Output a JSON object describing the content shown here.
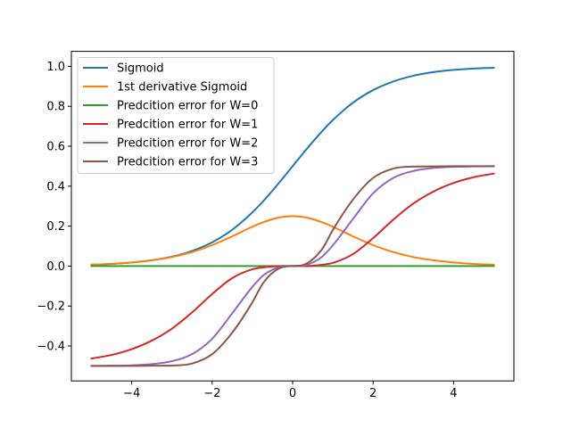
{
  "chart_data": {
    "type": "line",
    "title": "",
    "xlabel": "",
    "ylabel": "",
    "xlim": [
      -5.5,
      5.5
    ],
    "ylim": [
      -0.575,
      1.075
    ],
    "xticks": [
      -4,
      -2,
      0,
      2,
      4
    ],
    "xtick_labels": [
      "−4",
      "−2",
      "0",
      "2",
      "4"
    ],
    "yticks": [
      -0.4,
      -0.2,
      0.0,
      0.2,
      0.4,
      0.6,
      0.8,
      1.0
    ],
    "ytick_labels": [
      "−0.4",
      "−0.2",
      "0.0",
      "0.2",
      "0.4",
      "0.6",
      "0.8",
      "1.0"
    ],
    "grid": false,
    "legend_position": "top-left",
    "x": [
      -5,
      -4.5,
      -4,
      -3.5,
      -3,
      -2.5,
      -2,
      -1.5,
      -1,
      -0.75,
      -0.5,
      -0.25,
      0,
      0.25,
      0.5,
      0.75,
      1,
      1.5,
      2,
      2.5,
      3,
      3.5,
      4,
      4.5,
      5
    ],
    "series": [
      {
        "name": "Sigmoid",
        "color": "#1f77b4",
        "values": [
          0.007,
          0.011,
          0.018,
          0.029,
          0.047,
          0.076,
          0.119,
          0.182,
          0.269,
          0.321,
          0.378,
          0.438,
          0.5,
          0.562,
          0.622,
          0.679,
          0.731,
          0.818,
          0.881,
          0.924,
          0.953,
          0.971,
          0.982,
          0.989,
          0.993
        ]
      },
      {
        "name": "1st derivative Sigmoid",
        "color": "#ff7f0e",
        "values": [
          0.007,
          0.011,
          0.018,
          0.029,
          0.045,
          0.07,
          0.105,
          0.149,
          0.197,
          0.218,
          0.235,
          0.246,
          0.25,
          0.246,
          0.235,
          0.218,
          0.197,
          0.149,
          0.105,
          0.07,
          0.045,
          0.029,
          0.018,
          0.011,
          0.007
        ]
      },
      {
        "name": "Predcition error for W=0",
        "color": "#2ca02c",
        "values": [
          0,
          0,
          0,
          0,
          0,
          0,
          0,
          0,
          0,
          0,
          0,
          0,
          0,
          0,
          0,
          0,
          0,
          0,
          0,
          0,
          0,
          0,
          0,
          0,
          0
        ]
      },
      {
        "name": "Predcition error for W=1",
        "color": "#d62728",
        "values": [
          -0.463,
          -0.445,
          -0.416,
          -0.373,
          -0.313,
          -0.232,
          -0.14,
          -0.06,
          -0.016,
          -0.007,
          -0.002,
          0,
          0,
          0,
          0.002,
          0.007,
          0.016,
          0.06,
          0.14,
          0.232,
          0.313,
          0.373,
          0.416,
          0.445,
          0.463
        ]
      },
      {
        "name": "Predcition error for W=2",
        "color": "#9467bd",
        "values": [
          -0.5,
          -0.499,
          -0.497,
          -0.491,
          -0.476,
          -0.441,
          -0.364,
          -0.236,
          -0.104,
          -0.05,
          -0.018,
          -0.002,
          0,
          0.002,
          0.018,
          0.05,
          0.104,
          0.236,
          0.364,
          0.441,
          0.476,
          0.491,
          0.497,
          0.499,
          0.5
        ]
      },
      {
        "name": "Predcition error for W=3",
        "color": "#8c564b",
        "values": [
          -0.5,
          -0.5,
          -0.5,
          -0.499,
          -0.498,
          -0.488,
          -0.441,
          -0.333,
          -0.181,
          -0.09,
          -0.034,
          -0.005,
          0,
          0.005,
          0.034,
          0.09,
          0.181,
          0.333,
          0.441,
          0.488,
          0.498,
          0.499,
          0.5,
          0.5,
          0.5
        ]
      }
    ]
  }
}
